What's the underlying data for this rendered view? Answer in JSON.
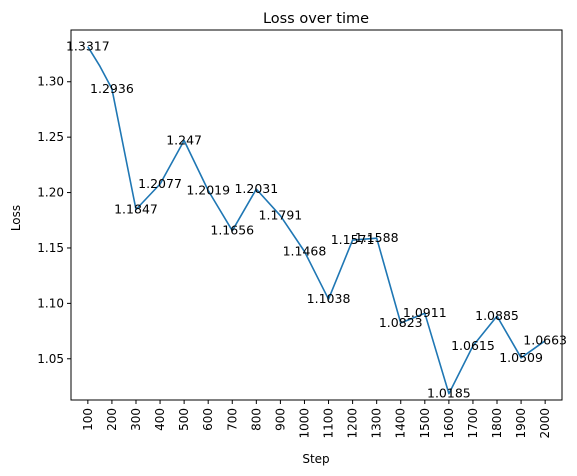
{
  "chart_data": {
    "type": "line",
    "title": "Loss over time",
    "xlabel": "Step",
    "ylabel": "Loss",
    "x": [
      100,
      150,
      200,
      300,
      400,
      500,
      600,
      700,
      800,
      900,
      1000,
      1100,
      1200,
      1300,
      1400,
      1500,
      1600,
      1700,
      1800,
      1900,
      2000
    ],
    "xticks": [
      "100",
      "200",
      "300",
      "400",
      "500",
      "600",
      "700",
      "800",
      "900",
      "1000",
      "1100",
      "1200",
      "1300",
      "1400",
      "1500",
      "1600",
      "1700",
      "1800",
      "1900",
      "2000"
    ],
    "yticks": [
      "1.05",
      "1.10",
      "1.15",
      "1.20",
      "1.25",
      "1.30"
    ],
    "ytick_values": [
      1.05,
      1.1,
      1.15,
      1.2,
      1.25,
      1.3
    ],
    "xlim": [
      30,
      2070
    ],
    "ylim": [
      1.0128,
      1.3467
    ],
    "grid": false,
    "legend": false,
    "series": [
      {
        "color": "#1f77b4",
        "values": [
          1.3317,
          1.314,
          1.2936,
          1.1847,
          1.2077,
          1.247,
          1.2019,
          1.1656,
          1.2031,
          1.1791,
          1.1468,
          1.1038,
          1.1571,
          1.1588,
          1.0823,
          1.0911,
          1.0185,
          1.0615,
          1.0885,
          1.0509,
          1.0663
        ]
      }
    ],
    "annotations": [
      {
        "text": "1.3317",
        "x": 100,
        "y": 1.3317
      },
      {
        "text": "1.2936",
        "x": 200,
        "y": 1.2936
      },
      {
        "text": "1.1847",
        "x": 300,
        "y": 1.1847
      },
      {
        "text": "1.2077",
        "x": 400,
        "y": 1.2077
      },
      {
        "text": "1.247",
        "x": 500,
        "y": 1.247
      },
      {
        "text": "1.2019",
        "x": 600,
        "y": 1.2019
      },
      {
        "text": "1.1656",
        "x": 700,
        "y": 1.1656
      },
      {
        "text": "1.2031",
        "x": 800,
        "y": 1.2031
      },
      {
        "text": "1.1791",
        "x": 900,
        "y": 1.1791
      },
      {
        "text": "1.1468",
        "x": 1000,
        "y": 1.1468
      },
      {
        "text": "1.1038",
        "x": 1100,
        "y": 1.1038
      },
      {
        "text": "1.1571",
        "x": 1200,
        "y": 1.1571
      },
      {
        "text": "1.1588",
        "x": 1300,
        "y": 1.1588
      },
      {
        "text": "1.0823",
        "x": 1400,
        "y": 1.0823
      },
      {
        "text": "1.0911",
        "x": 1500,
        "y": 1.0911
      },
      {
        "text": "1.0185",
        "x": 1600,
        "y": 1.0185
      },
      {
        "text": "1.0615",
        "x": 1700,
        "y": 1.0615
      },
      {
        "text": "1.0885",
        "x": 1800,
        "y": 1.0885
      },
      {
        "text": "1.0509",
        "x": 1900,
        "y": 1.0509
      },
      {
        "text": "1.0663",
        "x": 2000,
        "y": 1.0663
      }
    ]
  }
}
